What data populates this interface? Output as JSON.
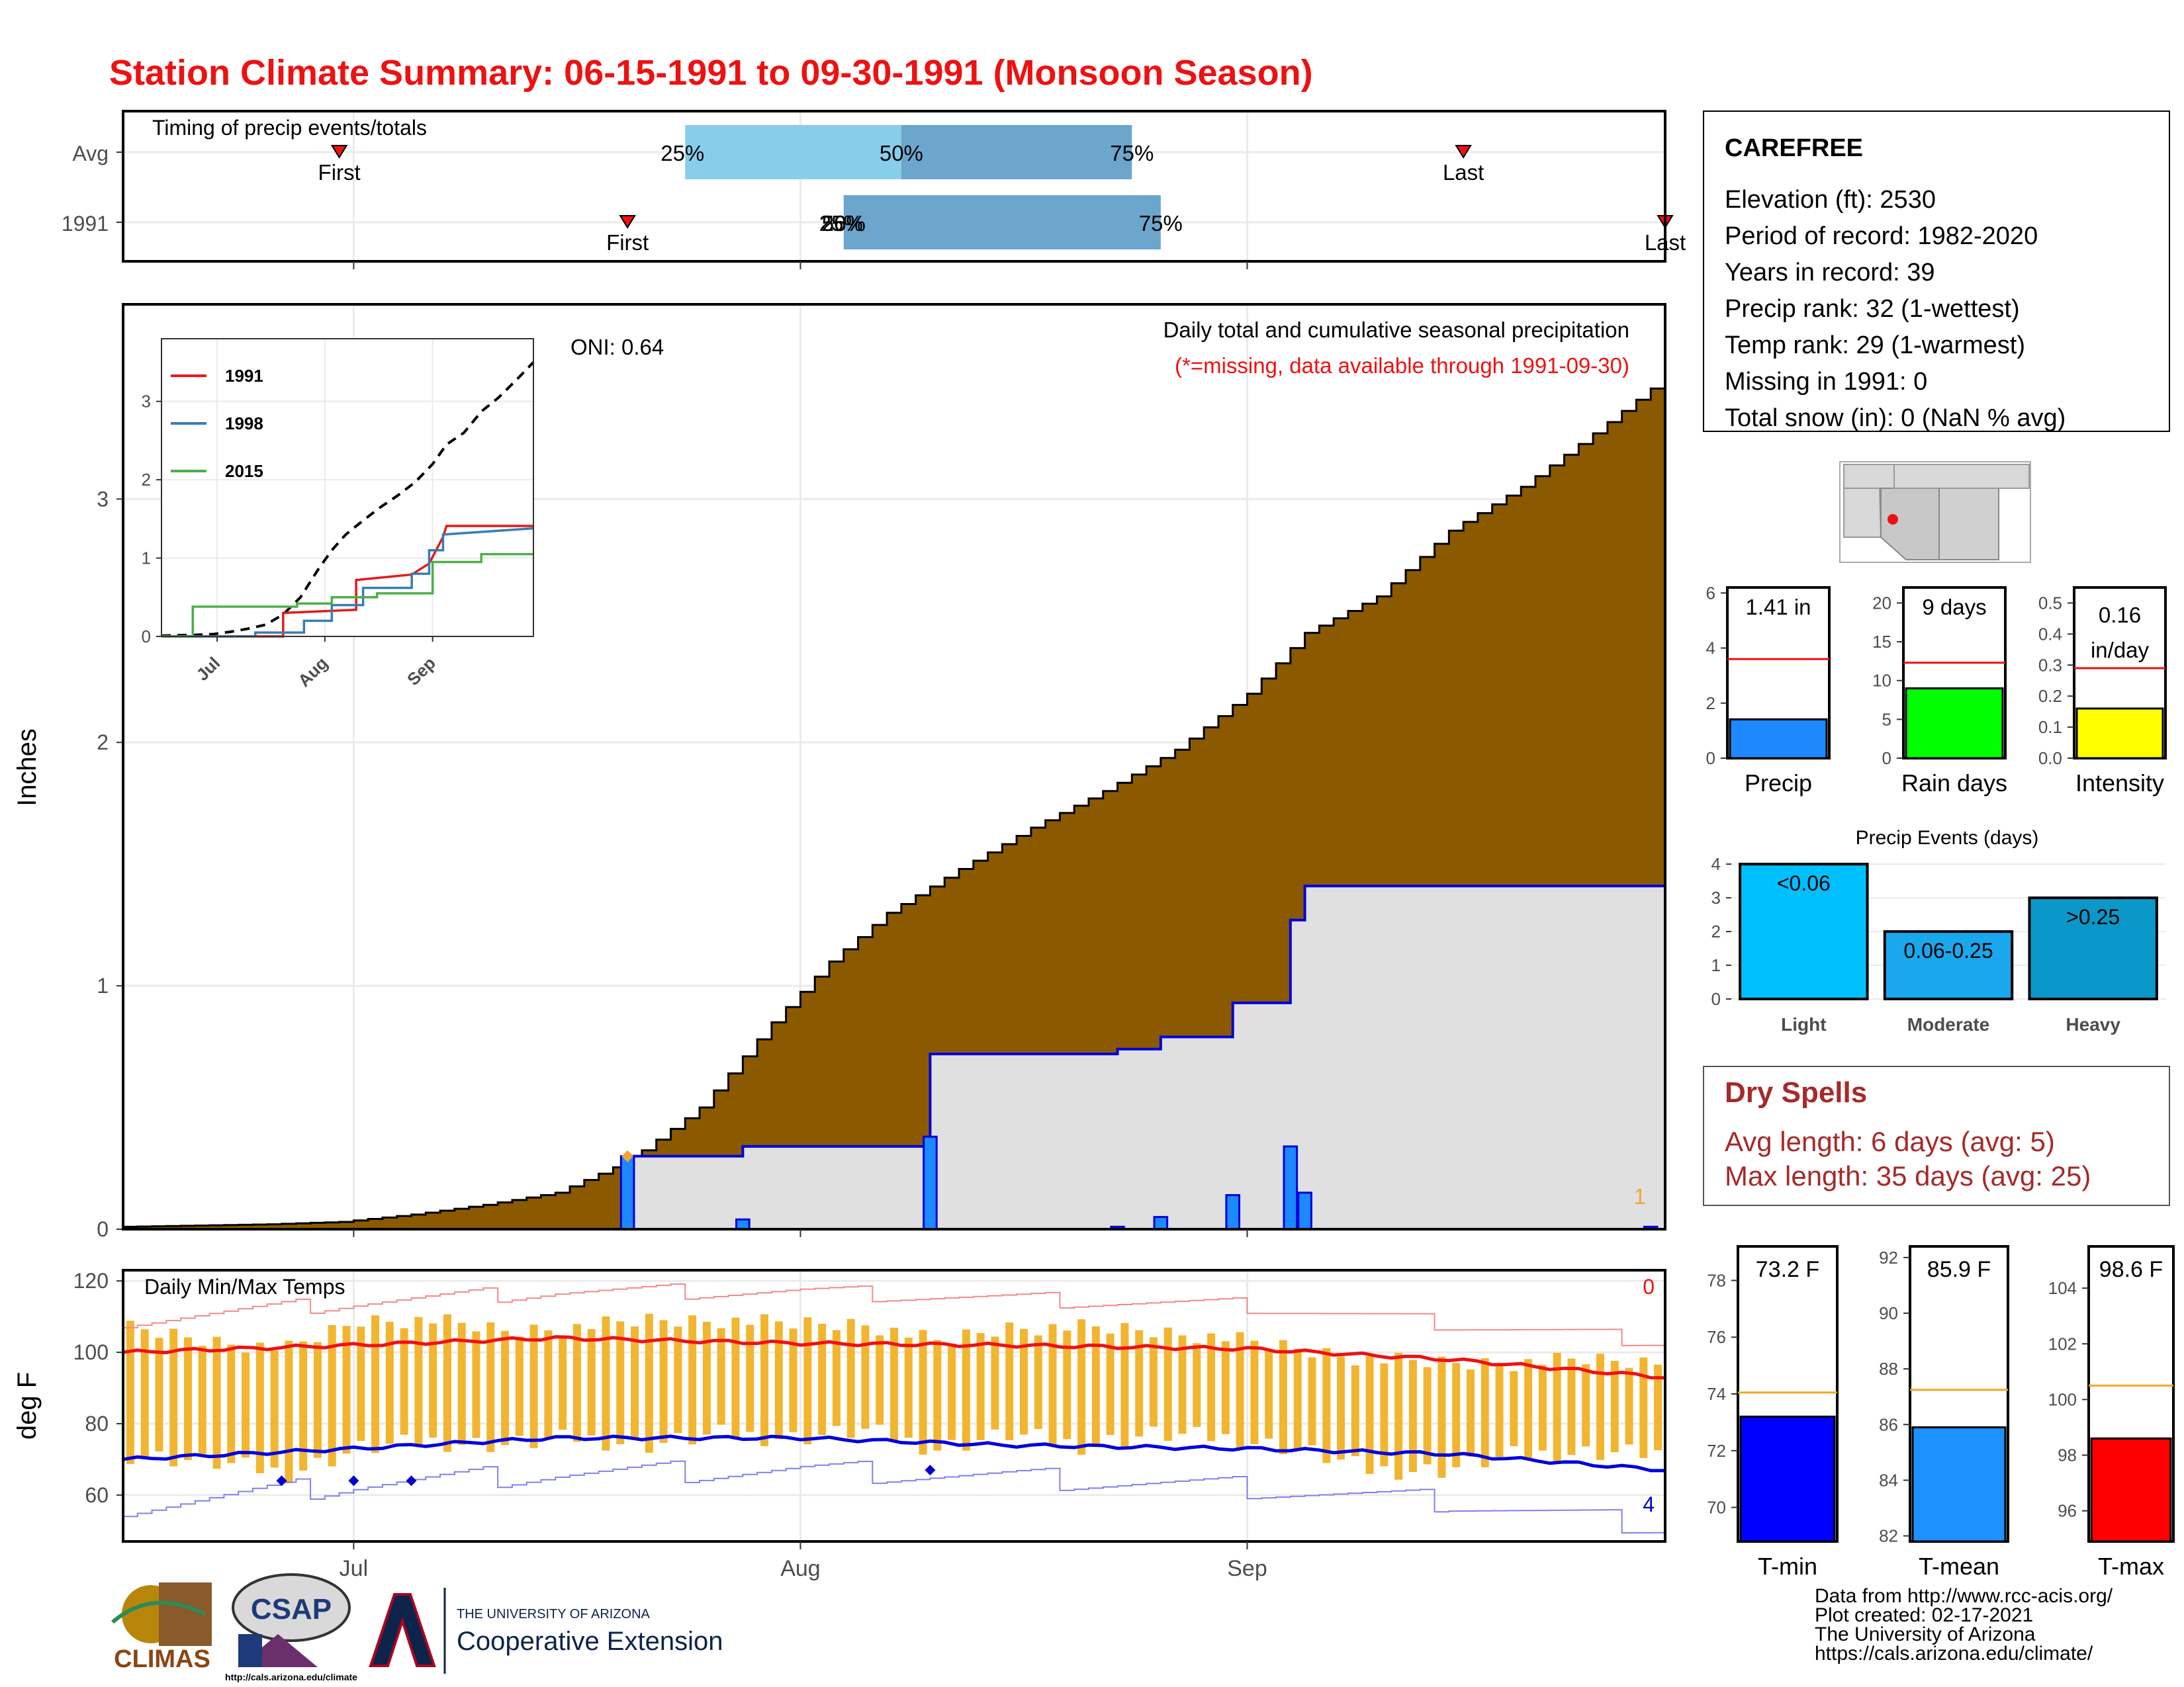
{
  "title": "Station Climate Summary: 06-15-1991 to 09-30-1991 (Monsoon Season)",
  "station": {
    "name": "CAREFREE",
    "lines": [
      "Elevation (ft): 2530",
      "Period of record: 1982-2020",
      "Years in record: 39",
      "Precip rank: 32 (1-wettest)",
      "Temp rank: 29 (1-warmest)",
      "Missing in 1991: 0",
      "Total snow (in): 0 (NaN % avg)"
    ]
  },
  "dry_spells": {
    "title": "Dry Spells",
    "avg": "Avg length: 6 days (avg: 5)",
    "max": "Max length: 35 days (avg: 25)"
  },
  "credits": [
    "Data from http://www.rcc-acis.org/",
    "Plot created: 02-17-2021",
    "The University of Arizona",
    "https://cals.arizona.edu/climate/"
  ],
  "logos": {
    "climas": "CLIMAS",
    "csap": "CSAP",
    "csap_url": "http://cals.arizona.edu/climate",
    "ua_line1": "THE UNIVERSITY OF ARIZONA",
    "ua_line2": "Cooperative Extension"
  },
  "colors": {
    "title": "#ee1111",
    "cumulative_fill": "#8b5a00",
    "avg_fill": "#e0e0e0",
    "daily_bar": "#1e88ff",
    "avg_line": "#0000dd",
    "tmax": "#ee1111",
    "tmin": "#0000dd",
    "temp_bar": "#f2b530"
  },
  "chart_data": [
    {
      "id": "timing",
      "type": "bar",
      "title": "Timing of precip events/totals",
      "x_range": [
        "1991-06-15",
        "1991-09-30"
      ],
      "x_tick_labels": [
        "Jul",
        "Aug",
        "Sep"
      ],
      "rows": [
        {
          "label": "Avg",
          "first": "1991-06-30",
          "p25": "1991-07-24",
          "p50": "1991-08-08",
          "p75": "1991-08-24",
          "last": "1991-09-16"
        },
        {
          "label": "1991",
          "first": "1991-07-20",
          "p25": "1991-08-04",
          "p50": "1991-08-04",
          "p75": "1991-08-26",
          "last": "1991-09-30"
        }
      ],
      "marker_labels": {
        "first": "First",
        "last": "Last",
        "p25": "25%",
        "p50": "50%",
        "p75": "75%"
      },
      "overlap_label": "26%"
    },
    {
      "id": "precip",
      "type": "area",
      "title": "Daily total and cumulative seasonal precipitation",
      "subtitle": "(*=missing, data available through 1991-09-30)",
      "ylabel": "Inches",
      "ylim": [
        0,
        3.8
      ],
      "yticks": [
        0,
        1,
        2,
        3
      ],
      "x_range": [
        "1991-06-15",
        "1991-09-30"
      ],
      "x_tick_labels": [
        "Jul",
        "Aug",
        "Sep"
      ],
      "oni_label": "ONI: 0.64",
      "corner_count": "1",
      "avg_cumulative": [
        [
          "1991-06-15",
          0.01
        ],
        [
          "1991-06-25",
          0.02
        ],
        [
          "1991-06-30",
          0.03
        ],
        [
          "1991-07-05",
          0.06
        ],
        [
          "1991-07-10",
          0.1
        ],
        [
          "1991-07-15",
          0.15
        ],
        [
          "1991-07-20",
          0.28
        ],
        [
          "1991-07-25",
          0.5
        ],
        [
          "1991-07-30",
          0.85
        ],
        [
          "1991-08-03",
          1.1
        ],
        [
          "1991-08-07",
          1.3
        ],
        [
          "1991-08-12",
          1.48
        ],
        [
          "1991-08-17",
          1.65
        ],
        [
          "1991-08-22",
          1.8
        ],
        [
          "1991-08-27",
          1.97
        ],
        [
          "1991-09-01",
          2.2
        ],
        [
          "1991-09-05",
          2.45
        ],
        [
          "1991-09-10",
          2.6
        ],
        [
          "1991-09-15",
          2.87
        ],
        [
          "1991-09-20",
          3.05
        ],
        [
          "1991-09-25",
          3.27
        ],
        [
          "1991-09-30",
          3.5
        ]
      ],
      "cumulative_1991": [
        [
          "1991-06-15",
          0
        ],
        [
          "1991-07-20",
          0
        ],
        [
          "1991-07-20",
          0.3
        ],
        [
          "1991-07-28",
          0.3
        ],
        [
          "1991-07-28",
          0.34
        ],
        [
          "1991-08-10",
          0.34
        ],
        [
          "1991-08-10",
          0.72
        ],
        [
          "1991-08-23",
          0.72
        ],
        [
          "1991-08-23",
          0.74
        ],
        [
          "1991-08-26",
          0.74
        ],
        [
          "1991-08-26",
          0.79
        ],
        [
          "1991-08-31",
          0.79
        ],
        [
          "1991-08-31",
          0.93
        ],
        [
          "1991-09-04",
          0.93
        ],
        [
          "1991-09-04",
          1.27
        ],
        [
          "1991-09-05",
          1.27
        ],
        [
          "1991-09-05",
          1.41
        ],
        [
          "1991-09-30",
          1.41
        ]
      ],
      "daily_1991": [
        [
          "1991-07-20",
          0.3
        ],
        [
          "1991-07-28",
          0.04
        ],
        [
          "1991-08-10",
          0.38
        ],
        [
          "1991-08-23",
          0.01
        ],
        [
          "1991-08-26",
          0.05
        ],
        [
          "1991-08-31",
          0.14
        ],
        [
          "1991-09-04",
          0.34
        ],
        [
          "1991-09-05",
          0.15
        ],
        [
          "1991-09-29",
          0.01
        ]
      ],
      "marker": {
        "date": "1991-07-20",
        "value": 0.3
      }
    },
    {
      "id": "inset",
      "type": "line",
      "yticks": [
        0,
        1,
        2,
        3
      ],
      "ylim": [
        0,
        3.8
      ],
      "x_tick_labels": [
        "Jul",
        "Aug",
        "Sep"
      ],
      "average_1991_curve_style": "dashed",
      "series": [
        {
          "name": "1991",
          "color": "#e41a1c",
          "points": [
            [
              "1991-06-15",
              0
            ],
            [
              "1991-07-20",
              0
            ],
            [
              "1991-07-20",
              0.3
            ],
            [
              "1991-08-10",
              0.34
            ],
            [
              "1991-08-10",
              0.72
            ],
            [
              "1991-08-26",
              0.79
            ],
            [
              "1991-08-31",
              0.93
            ],
            [
              "1991-09-04",
              1.27
            ],
            [
              "1991-09-05",
              1.41
            ],
            [
              "1991-09-30",
              1.41
            ]
          ]
        },
        {
          "name": "1998",
          "color": "#377eb8",
          "points": [
            [
              "1991-06-15",
              0
            ],
            [
              "1991-07-12",
              0
            ],
            [
              "1991-07-12",
              0.05
            ],
            [
              "1991-07-26",
              0.05
            ],
            [
              "1991-07-26",
              0.2
            ],
            [
              "1991-08-03",
              0.2
            ],
            [
              "1991-08-03",
              0.4
            ],
            [
              "1991-08-12",
              0.4
            ],
            [
              "1991-08-12",
              0.62
            ],
            [
              "1991-08-26",
              0.62
            ],
            [
              "1991-08-26",
              0.8
            ],
            [
              "1991-08-31",
              0.8
            ],
            [
              "1991-08-31",
              1.1
            ],
            [
              "1991-09-04",
              1.1
            ],
            [
              "1991-09-04",
              1.3
            ],
            [
              "1991-09-30",
              1.38
            ]
          ]
        },
        {
          "name": "2015",
          "color": "#4daf4a",
          "points": [
            [
              "1991-06-15",
              0
            ],
            [
              "1991-06-24",
              0
            ],
            [
              "1991-06-24",
              0.38
            ],
            [
              "1991-07-24",
              0.38
            ],
            [
              "1991-07-24",
              0.42
            ],
            [
              "1991-08-03",
              0.42
            ],
            [
              "1991-08-03",
              0.5
            ],
            [
              "1991-08-16",
              0.5
            ],
            [
              "1991-08-16",
              0.55
            ],
            [
              "1991-09-01",
              0.55
            ],
            [
              "1991-09-01",
              0.95
            ],
            [
              "1991-09-15",
              0.95
            ],
            [
              "1991-09-15",
              1.05
            ],
            [
              "1991-09-30",
              1.05
            ]
          ]
        }
      ]
    },
    {
      "id": "temps",
      "type": "line",
      "title": "Daily Min/Max Temps",
      "ylabel": "deg F",
      "ylim": [
        47,
        123
      ],
      "yticks": [
        60,
        80,
        100,
        120
      ],
      "x_range": [
        "1991-06-15",
        "1991-09-30"
      ],
      "x_tick_labels": [
        "Jul",
        "Aug",
        "Sep"
      ],
      "count_top": "0",
      "count_bottom": "4",
      "avg_tmax": [
        [
          "1991-06-15",
          100
        ],
        [
          "1991-07-01",
          102
        ],
        [
          "1991-07-15",
          104
        ],
        [
          "1991-08-01",
          102.5
        ],
        [
          "1991-08-15",
          102
        ],
        [
          "1991-09-01",
          101
        ],
        [
          "1991-09-15",
          98
        ],
        [
          "1991-09-30",
          93
        ]
      ],
      "avg_tmin": [
        [
          "1991-06-15",
          70
        ],
        [
          "1991-07-01",
          73
        ],
        [
          "1991-07-15",
          76
        ],
        [
          "1991-08-01",
          76
        ],
        [
          "1991-08-15",
          74
        ],
        [
          "1991-09-01",
          73
        ],
        [
          "1991-09-15",
          71.5
        ],
        [
          "1991-09-30",
          67
        ]
      ],
      "record_tmax": [
        [
          "1991-06-15",
          109
        ],
        [
          "1991-07-01",
          114
        ],
        [
          "1991-07-15",
          117
        ],
        [
          "1991-08-01",
          117
        ],
        [
          "1991-08-15",
          115
        ],
        [
          "1991-09-01",
          113
        ],
        [
          "1991-09-15",
          108
        ],
        [
          "1991-09-30",
          103
        ]
      ],
      "record_tmin": [
        [
          "1991-06-15",
          57
        ],
        [
          "1991-07-01",
          63
        ],
        [
          "1991-07-15",
          66
        ],
        [
          "1991-08-01",
          67
        ],
        [
          "1991-08-15",
          65
        ],
        [
          "1991-09-01",
          62
        ],
        [
          "1991-09-15",
          58
        ],
        [
          "1991-09-30",
          51
        ]
      ],
      "daily_ranges_1991": [
        [
          "1991-06-16",
          71,
          106
        ],
        [
          "1991-06-21",
          69,
          103
        ],
        [
          "1991-06-26",
          66,
          101
        ],
        [
          "1991-07-01",
          73,
          109
        ],
        [
          "1991-07-06",
          75,
          109
        ],
        [
          "1991-07-11",
          74,
          106
        ],
        [
          "1991-07-16",
          76,
          107
        ],
        [
          "1991-07-21",
          74,
          109
        ],
        [
          "1991-07-26",
          77,
          109
        ],
        [
          "1991-07-31",
          76,
          108
        ],
        [
          "1991-08-05",
          78,
          108
        ],
        [
          "1991-08-10",
          73,
          103
        ],
        [
          "1991-08-15",
          77,
          107
        ],
        [
          "1991-08-20",
          74,
          107
        ],
        [
          "1991-08-25",
          77,
          106
        ],
        [
          "1991-08-30",
          76,
          104
        ],
        [
          "1991-09-04",
          73,
          101
        ],
        [
          "1991-09-09",
          67,
          98
        ],
        [
          "1991-09-14",
          67,
          97
        ],
        [
          "1991-09-19",
          71,
          97
        ],
        [
          "1991-09-24",
          72,
          98
        ],
        [
          "1991-09-29",
          72,
          97
        ]
      ],
      "record_low_markers": [
        [
          "1991-06-26",
          64
        ],
        [
          "1991-07-01",
          64
        ],
        [
          "1991-07-05",
          64
        ],
        [
          "1991-08-10",
          67
        ]
      ]
    },
    {
      "id": "precip_summary",
      "type": "bar",
      "panels": [
        {
          "label": "Precip",
          "value": 1.41,
          "value_label": "1.41 in",
          "avg": 3.6,
          "ylim": [
            0,
            6.2
          ],
          "yticks": [
            0,
            2,
            4,
            6
          ],
          "color": "#1e88ff"
        },
        {
          "label": "Rain days",
          "value": 9,
          "value_label": "9 days",
          "avg": 12.3,
          "ylim": [
            0,
            22
          ],
          "yticks": [
            0,
            5,
            10,
            15,
            20
          ],
          "color": "#00ff00"
        },
        {
          "label": "Intensity",
          "value": 0.16,
          "value_label": "0.16 in/day",
          "value_label_lines": [
            "0.16",
            "in/day"
          ],
          "avg": 0.29,
          "ylim": [
            0,
            0.55
          ],
          "yticks": [
            0.0,
            0.1,
            0.2,
            0.3,
            0.4,
            0.5
          ],
          "color": "#ffff00"
        }
      ]
    },
    {
      "id": "precip_events",
      "type": "bar",
      "title": "Precip Events (days)",
      "categories": [
        "Light",
        "Moderate",
        "Heavy"
      ],
      "values": [
        4,
        2,
        3
      ],
      "bar_labels": [
        "<0.06",
        "0.06-0.25",
        ">0.25"
      ],
      "colors": [
        "#00bfff",
        "#1aa7ec",
        "#0b98c9"
      ],
      "ylim": [
        0,
        4.2
      ],
      "yticks": [
        0,
        1,
        2,
        3,
        4
      ]
    },
    {
      "id": "temp_summary",
      "type": "bar",
      "panels": [
        {
          "label": "T-min",
          "value": 73.2,
          "value_label": "73.2 F",
          "avg": 74.05,
          "ylim": [
            68.8,
            79.2
          ],
          "yticks": [
            70,
            72,
            74,
            76,
            78
          ],
          "color": "#0000ff"
        },
        {
          "label": "T-mean",
          "value": 85.9,
          "value_label": "85.9 F",
          "avg": 87.25,
          "ylim": [
            81.8,
            92.4
          ],
          "yticks": [
            82,
            84,
            86,
            88,
            90,
            92
          ],
          "color": "#1e90ff"
        },
        {
          "label": "T-max",
          "value": 98.6,
          "value_label": "98.6 F",
          "avg": 100.5,
          "ylim": [
            94.9,
            105.5
          ],
          "yticks": [
            96,
            98,
            100,
            102,
            104
          ],
          "color": "#ff0000"
        }
      ]
    }
  ]
}
